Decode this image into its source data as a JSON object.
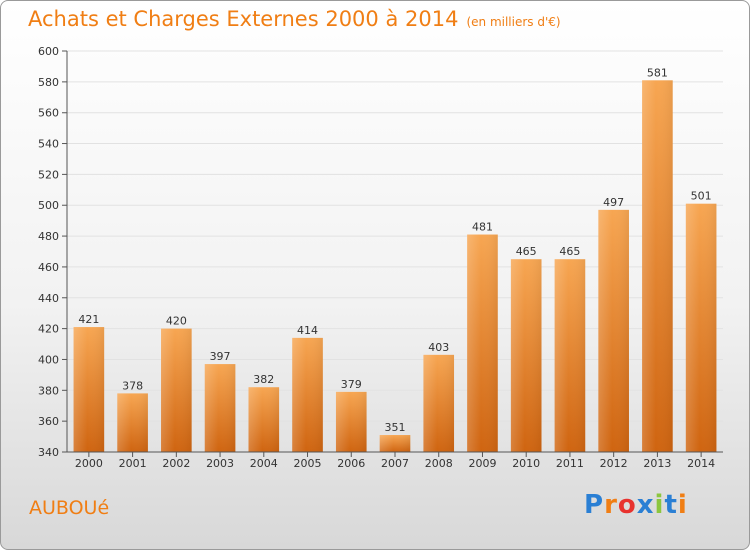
{
  "title": "Achats et Charges Externes 2000 à 2014",
  "unit": "(en milliers d'€)",
  "commune": "AUBOUé",
  "logo": {
    "text": "Proxiti",
    "letters": [
      "P",
      "r",
      "o",
      "x",
      "i",
      "t",
      "i"
    ],
    "colors": [
      "#2a7fd4",
      "#f07e14",
      "#e8322e",
      "#2a7fd4",
      "#8cc63f",
      "#2a7fd4",
      "#f07e14"
    ]
  },
  "colors": {
    "accent": "#f07e14",
    "bar_top": "#f7a652",
    "bar_bottom": "#cf6410",
    "grid": "#e2e2e2"
  },
  "chart_data": {
    "type": "bar",
    "categories": [
      "2000",
      "2001",
      "2002",
      "2003",
      "2004",
      "2005",
      "2006",
      "2007",
      "2008",
      "2009",
      "2010",
      "2011",
      "2012",
      "2013",
      "2014"
    ],
    "values": [
      421,
      378,
      420,
      397,
      382,
      414,
      379,
      351,
      403,
      481,
      465,
      465,
      497,
      581,
      501
    ],
    "ylim": [
      340,
      600
    ],
    "yticks": [
      340,
      360,
      380,
      400,
      420,
      440,
      460,
      480,
      500,
      520,
      540,
      560,
      580,
      600
    ],
    "title": "Achats et Charges Externes 2000 à 2014",
    "xlabel": "",
    "ylabel": "",
    "grid": true,
    "legend": "none"
  }
}
